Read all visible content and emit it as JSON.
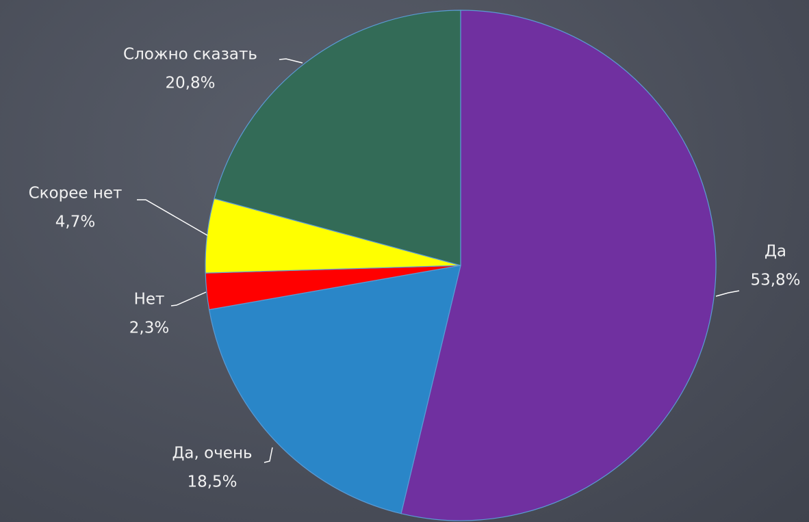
{
  "chart_data": {
    "type": "pie",
    "categories": [
      "Да",
      "Да, очень",
      "Нет",
      "Скорее нет",
      "Сложно сказать"
    ],
    "values": [
      53.8,
      18.5,
      2.3,
      4.7,
      20.8
    ],
    "value_labels": [
      "53,8%",
      "18,5%",
      "2,3%",
      "4,7%",
      "20,8%"
    ],
    "colors": [
      "#7030a0",
      "#2a86c8",
      "#ff0000",
      "#ffff00",
      "#336b57"
    ]
  }
}
